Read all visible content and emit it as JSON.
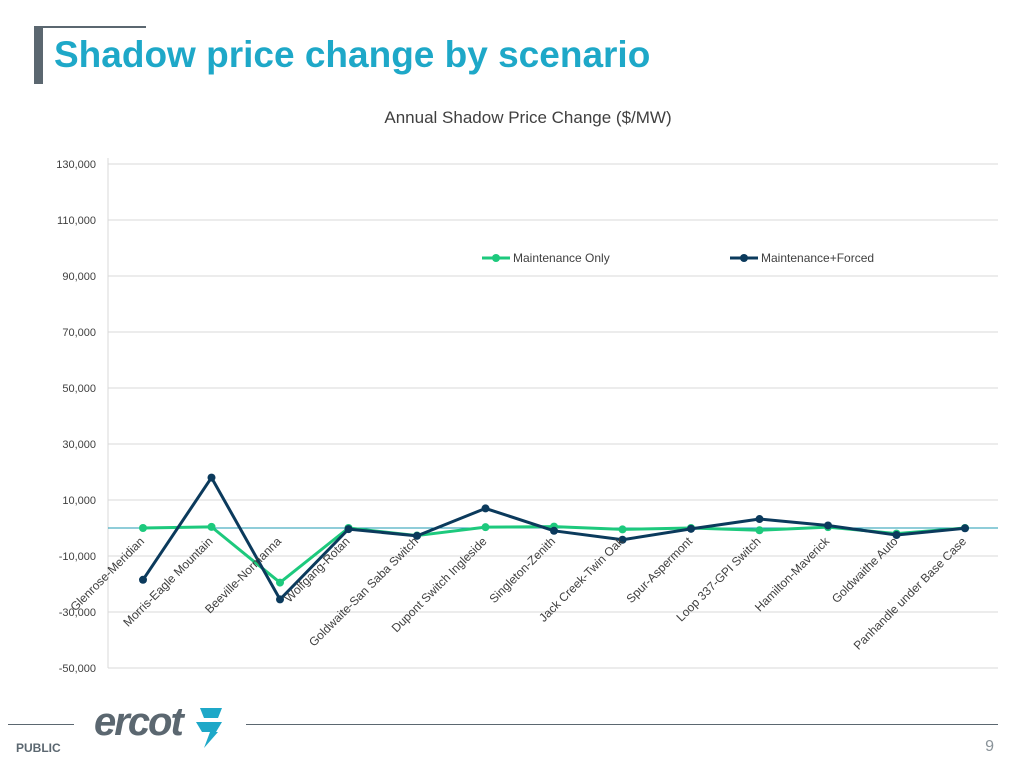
{
  "slide": {
    "title": "Shadow price change by scenario",
    "footer_label": "PUBLIC",
    "page_number": "9",
    "logo_text": "ercot",
    "title_color": "#1ea8c8",
    "accent_color": "#5b6770"
  },
  "chart_data": {
    "type": "line",
    "title": "Annual Shadow Price Change ($/MW)",
    "xlabel": "",
    "ylabel": "",
    "ylim": [
      -50000,
      130000
    ],
    "yticks": [
      130000,
      110000,
      90000,
      70000,
      50000,
      30000,
      10000,
      -10000,
      -30000,
      -50000
    ],
    "ytick_labels": [
      "130,000",
      "110,000",
      "90,000",
      "70,000",
      "50,000",
      "30,000",
      "10,000",
      "-10,000",
      "-30,000",
      "-50,000"
    ],
    "grid": true,
    "legend_position": "top-right",
    "categories": [
      "Glenrose-Meridian",
      "Morris-Eagle Mountain",
      "Beeville-Normanna",
      "Wolfgang-Rotan",
      "Goldwaite-San Saba Switch",
      "Dupont Switch Ingleside",
      "Singleton-Zenith",
      "Jack Creek-Twin Oak",
      "Spur-Aspermont",
      "Loop 337-GPI Switch",
      "Hamilton-Maverick",
      "Goldwaithe Auto",
      "Panhandle under Base Case"
    ],
    "series": [
      {
        "name": "Maintenance Only",
        "color": "#1dc97d",
        "values": [
          0,
          400,
          -19500,
          0,
          -2700,
          300,
          500,
          -500,
          0,
          -800,
          300,
          -2000,
          0
        ]
      },
      {
        "name": "Maintenance+Forced",
        "color": "#0b3a5c",
        "values": [
          -18500,
          18000,
          -25500,
          -400,
          -2800,
          7000,
          -1000,
          -4200,
          -300,
          3200,
          900,
          -2500,
          -100
        ]
      }
    ]
  }
}
